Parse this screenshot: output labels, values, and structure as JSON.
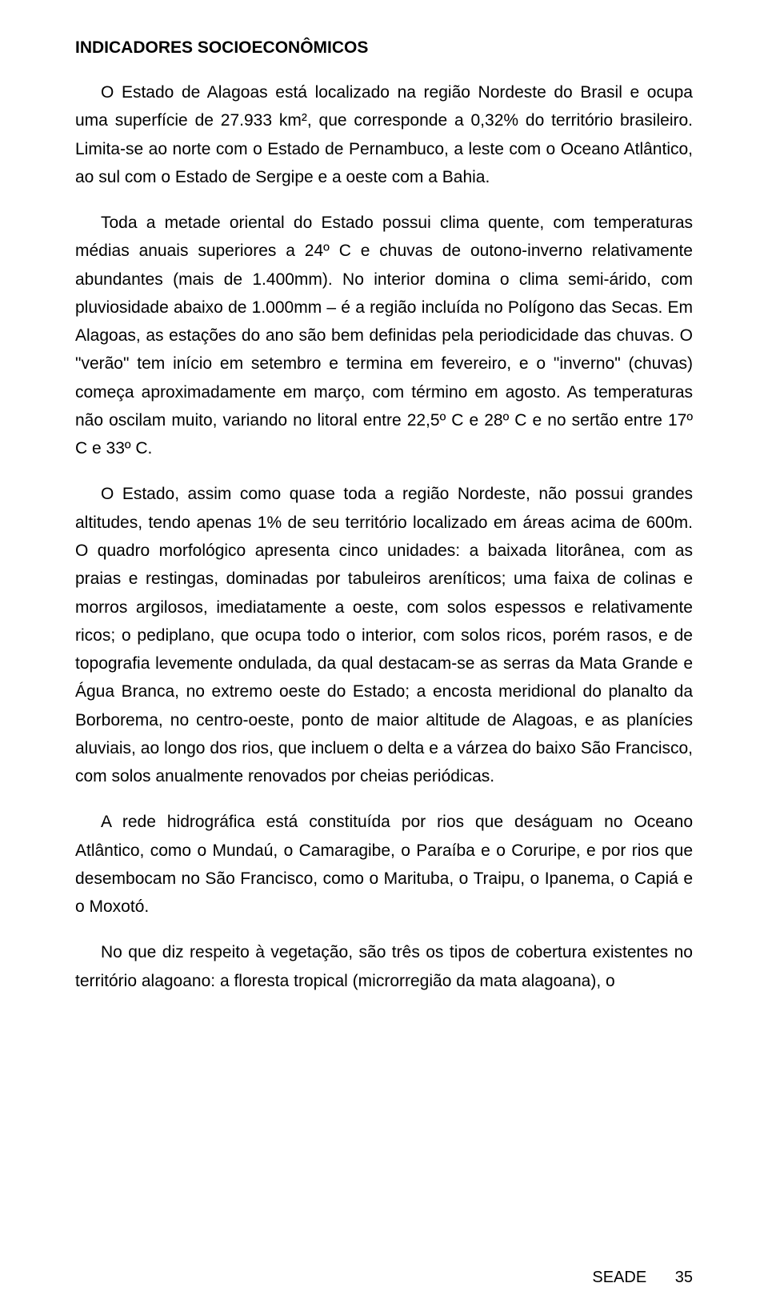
{
  "title": "INDICADORES SOCIOECONÔMICOS",
  "paragraphs": {
    "p1": "O Estado de Alagoas está localizado na região Nordeste do Brasil e ocupa uma superfície de 27.933 km², que corresponde a 0,32% do território brasileiro. Limita-se ao norte com o Estado de Pernambuco, a leste com o Oceano Atlântico, ao sul com o Estado de Sergipe e a oeste com a Bahia.",
    "p2": "Toda a metade oriental do Estado possui clima quente, com temperaturas médias anuais superiores a 24º C e chuvas de outono-inverno relativamente abundantes (mais de 1.400mm). No interior domina o clima semi-árido, com pluviosidade abaixo de 1.000mm – é a região incluída no Polígono das Secas. Em Alagoas, as estações do ano são bem definidas pela periodicidade das chuvas. O \"verão\" tem início em setembro e termina em fevereiro, e o \"inverno\" (chuvas) começa aproximadamente em março, com término em agosto. As temperaturas não oscilam muito, variando no litoral entre 22,5º C e 28º C e no sertão entre 17º C e 33º C.",
    "p3": "O Estado, assim como quase toda a região Nordeste, não possui grandes altitudes, tendo apenas 1% de seu território localizado em áreas acima de 600m. O quadro morfológico apresenta cinco unidades: a baixada litorânea, com as praias e restingas, dominadas por tabuleiros areníticos; uma faixa de colinas e morros argilosos, imediatamente a oeste, com solos espessos e relativamente ricos; o pediplano, que ocupa todo o interior, com solos ricos, porém rasos, e de topografia levemente ondulada, da qual destacam-se as serras da Mata Grande e Água Branca, no extremo oeste do Estado; a encosta meridional do planalto da Borborema, no centro-oeste, ponto de maior altitude de Alagoas, e as planícies aluviais, ao longo dos rios, que incluem o delta e a várzea do baixo São Francisco, com solos anualmente renovados por cheias periódicas.",
    "p4": "A rede hidrográfica está constituída por rios que deságuam no Oceano Atlântico, como o Mundaú, o Camaragibe, o Paraíba e o Coruripe, e por rios que desembocam no São Francisco, como o Marituba, o Traipu, o Ipanema, o Capiá e o Moxotó.",
    "p5": "No que diz respeito à vegetação, são três os tipos de cobertura existentes no território alagoano: a floresta tropical (microrregião da mata alagoana), o"
  },
  "footer": {
    "label": "SEADE",
    "page": "35"
  }
}
